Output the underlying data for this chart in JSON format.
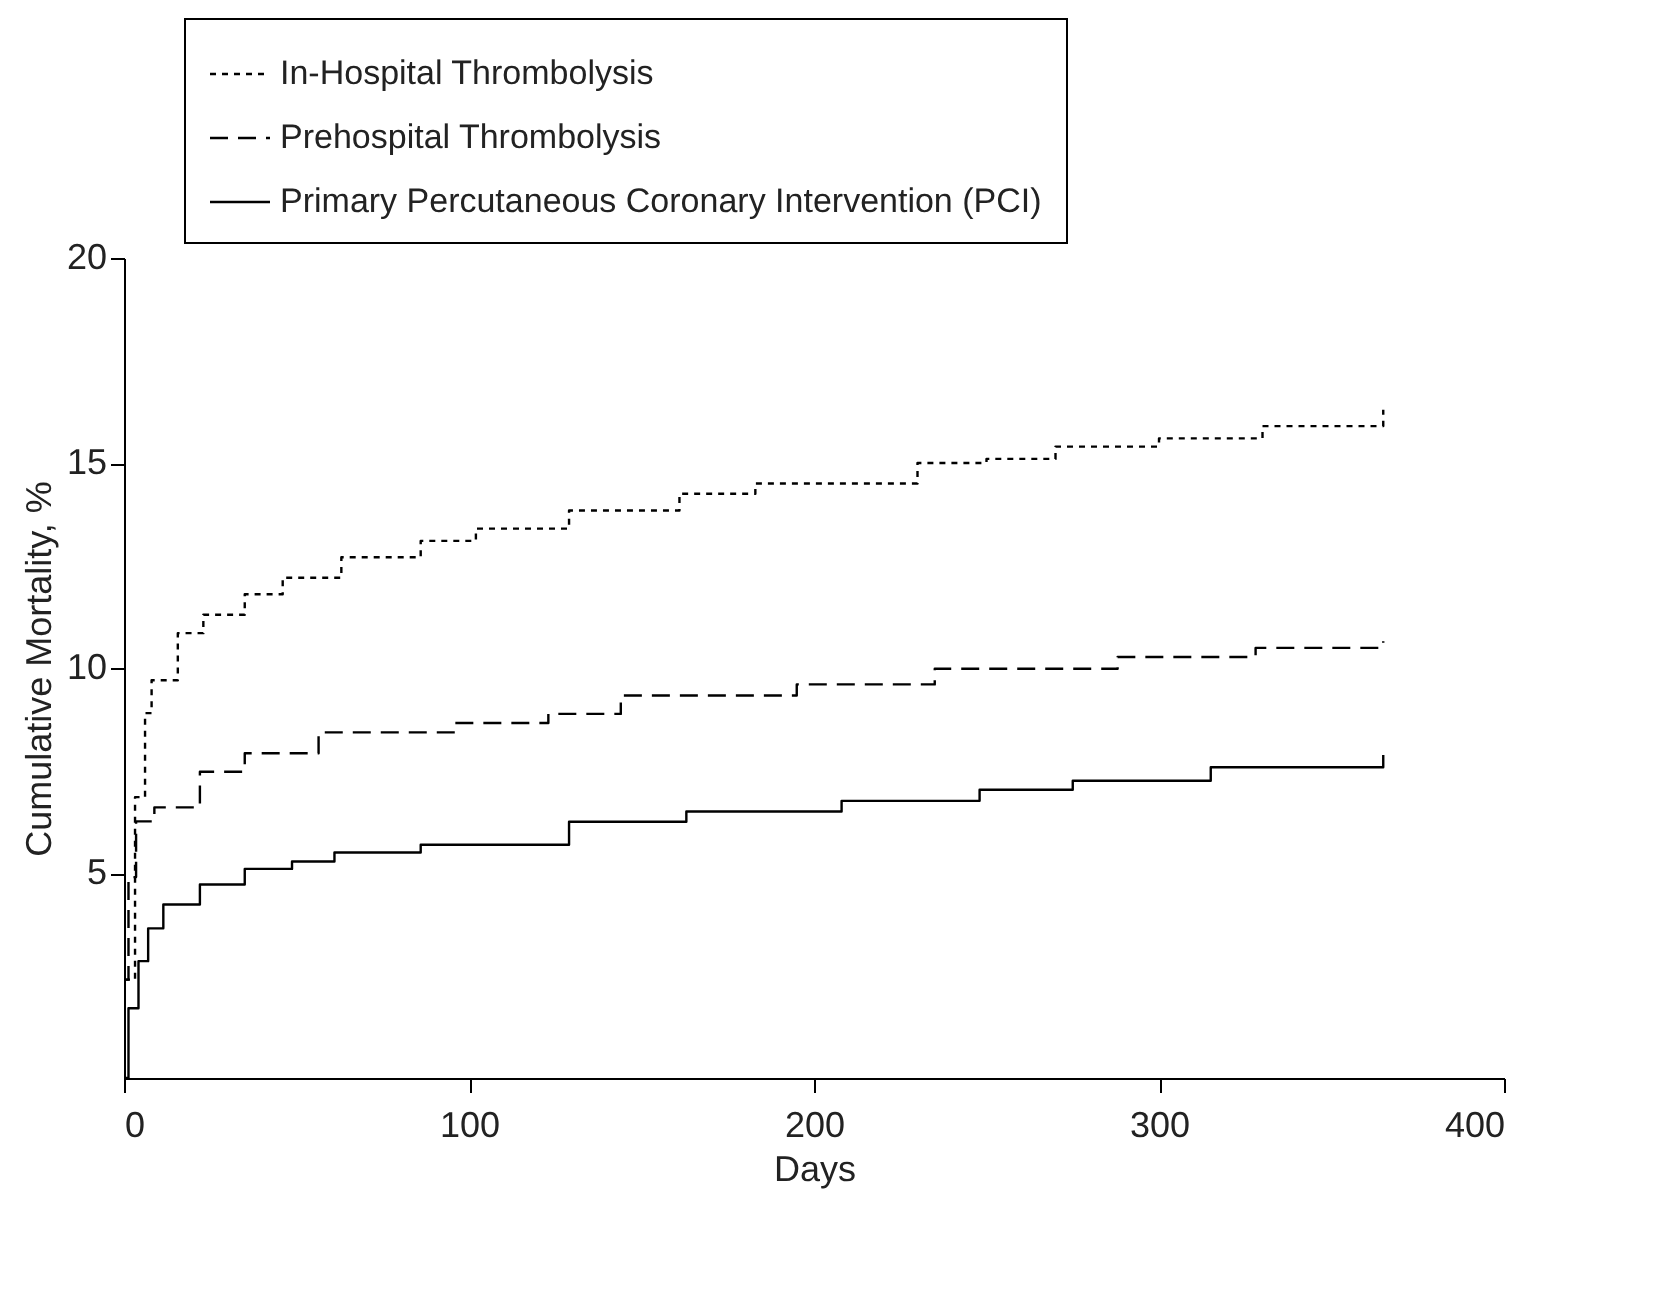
{
  "chart_data": {
    "type": "step",
    "xlabel": "Days",
    "ylabel": "Cumulative Mortality, %",
    "xlim": [
      0,
      400
    ],
    "xticks": [
      0,
      100,
      200,
      300,
      400
    ],
    "ylim": [
      0,
      20
    ],
    "yticks": [
      5,
      10,
      15,
      20
    ],
    "grid": false,
    "legend": "top left",
    "marker": "none",
    "series": [
      {
        "name": "In-Hospital Thrombolysis",
        "color": "#000000",
        "line_style": "dotted",
        "x": [
          0,
          3.2,
          6.1,
          8,
          15.6,
          23,
          35,
          46,
          63,
          86,
          102,
          129,
          161,
          183,
          230,
          250,
          270,
          300,
          330,
          365
        ],
        "values": [
          2.4,
          6.85,
          8.9,
          9.7,
          10.85,
          11.3,
          11.8,
          12.2,
          12.7,
          13.1,
          13.4,
          13.84,
          14.25,
          14.5,
          15.0,
          15.1,
          15.4,
          15.6,
          15.9,
          16.3
        ]
      },
      {
        "name": "Prehospital Thrombolysis",
        "color": "#000000",
        "line_style": "dashed",
        "x": [
          0,
          1.3,
          3.5,
          8.8,
          22,
          35,
          56.4,
          96,
          123,
          144,
          195,
          235,
          288,
          328,
          365
        ],
        "values": [
          2.4,
          4.9,
          6.26,
          6.6,
          7.47,
          7.92,
          8.43,
          8.66,
          8.88,
          9.33,
          9.6,
          9.98,
          10.27,
          10.49,
          10.65
        ]
      },
      {
        "name": "Primary Percutaneous Coronary Intervention (PCI)",
        "color": "#000000",
        "line_style": "solid",
        "x": [
          0,
          1.3,
          4.2,
          7,
          11.4,
          22,
          35,
          48.7,
          61,
          86,
          129,
          163,
          208,
          248,
          275,
          315,
          365
        ],
        "values": [
          0,
          1.7,
          2.85,
          3.65,
          4.23,
          4.72,
          5.1,
          5.28,
          5.5,
          5.69,
          6.25,
          6.5,
          6.76,
          7.03,
          7.25,
          7.58,
          7.88
        ]
      }
    ]
  }
}
